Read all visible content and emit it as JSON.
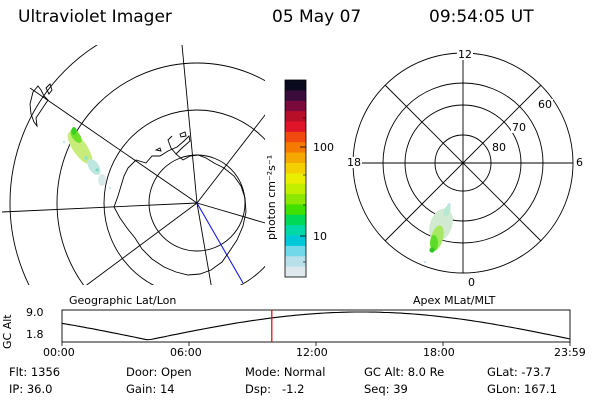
{
  "header": {
    "title": "Ultraviolet Imager",
    "date": "05 May 07",
    "time": "09:54:05 UT"
  },
  "colorbar": {
    "unit_label": "photon cm⁻²s⁻¹",
    "tick_labels": [
      "100",
      "10"
    ],
    "colors": [
      "#0a0a1e",
      "#3a0c3c",
      "#7a0a3c",
      "#b80f28",
      "#e0152a",
      "#f04a10",
      "#f57a00",
      "#f5a800",
      "#f5d000",
      "#eaef00",
      "#c2ee00",
      "#8ce800",
      "#40e000",
      "#00d858",
      "#00d8a8",
      "#00c8d8",
      "#70d8e8",
      "#b8e0ea",
      "#dde9ee"
    ]
  },
  "geo_map": {
    "label": "Geographic Lat/Lon"
  },
  "apex_map": {
    "label": "Apex MLat/MLT",
    "mlt_labels": {
      "top": "12",
      "bottom": "0",
      "left": "18",
      "right": "6"
    },
    "lat_labels": [
      "60",
      "70",
      "80"
    ]
  },
  "altitude_plot": {
    "ylabel": "GC Alt",
    "yticks": [
      "9.0",
      "1.8"
    ],
    "xticks": [
      "00:00",
      "06:00",
      "12:00",
      "18:00",
      "23:59"
    ],
    "current_time_fraction": 0.413,
    "curve_color": "#000000",
    "marker_color": "#e00000"
  },
  "info": {
    "row1": [
      {
        "label": "Flt:",
        "value": "1356"
      },
      {
        "label": "Door:",
        "value": "Open"
      },
      {
        "label": "Mode:",
        "value": "Normal"
      },
      {
        "label": "GC Alt:",
        "value": "8.0 Re"
      },
      {
        "label": "GLat:",
        "value": "-73.7"
      }
    ],
    "row2": [
      {
        "label": "IP:",
        "value": "36.0"
      },
      {
        "label": "Gain:",
        "value": "14"
      },
      {
        "label": "Dsp:",
        "value": "-1.2"
      },
      {
        "label": "Seq:",
        "value": "39"
      },
      {
        "label": "GLon:",
        "value": "167.1"
      }
    ]
  }
}
